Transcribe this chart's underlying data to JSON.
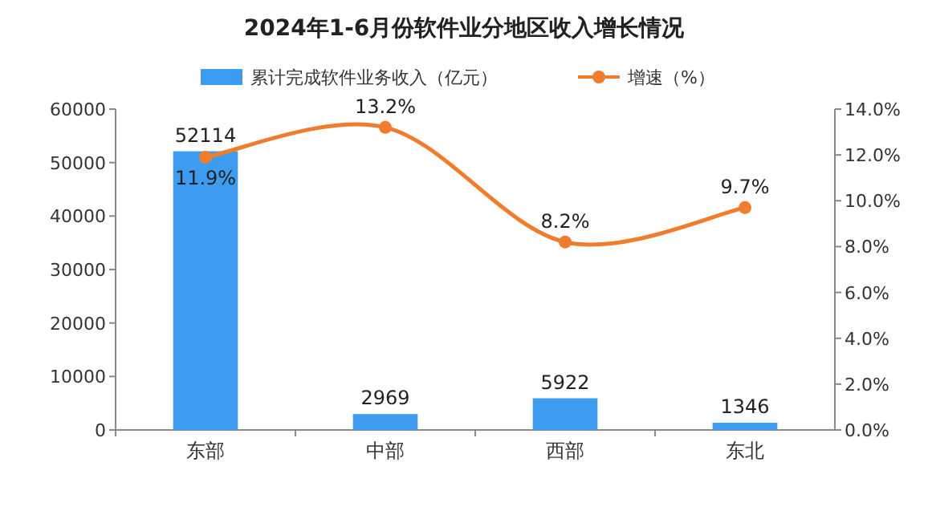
{
  "chart_data": {
    "type": "bar",
    "title": "2024年1-6月份软件业分地区收入增长情况",
    "categories": [
      "东部",
      "中部",
      "西部",
      "东北"
    ],
    "series": [
      {
        "name": "累计完成软件业务收入（亿元）",
        "color": "#3d9cf0",
        "values": [
          52114,
          2969,
          5922,
          1346
        ],
        "data_labels": true
      },
      {
        "name": "增速（%）",
        "type": "line",
        "axis": "y2",
        "color": "#f07c2d",
        "values": [
          11.9,
          13.2,
          8.2,
          9.7
        ],
        "value_labels": [
          "11.9%",
          "13.2%",
          "8.2%",
          "9.7%"
        ],
        "marker": "circle"
      }
    ],
    "ylim": [
      0,
      60000
    ],
    "yticks": [
      0,
      10000,
      20000,
      30000,
      40000,
      50000,
      60000
    ],
    "y2lim": [
      0,
      14
    ],
    "y2ticks": [
      {
        "value": 0,
        "label": "0.0%"
      },
      {
        "value": 2,
        "label": "2.0%"
      },
      {
        "value": 4,
        "label": "4.0%"
      },
      {
        "value": 6,
        "label": "6.0%"
      },
      {
        "value": 8,
        "label": "8.0%"
      },
      {
        "value": 10,
        "label": "10.0%"
      },
      {
        "value": 12,
        "label": "12.0%"
      },
      {
        "value": 14,
        "label": "14.0%"
      }
    ],
    "legend": "top",
    "grid": false
  }
}
